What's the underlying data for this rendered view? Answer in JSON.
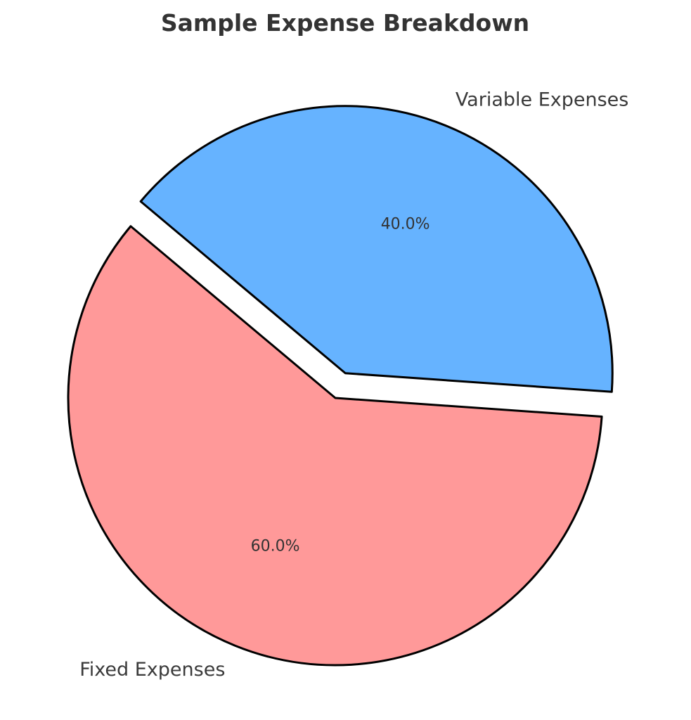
{
  "chart_data": {
    "type": "pie",
    "title": "Sample Expense Breakdown",
    "labels": [
      "Fixed Expenses",
      "Variable Expenses"
    ],
    "values": [
      60,
      40
    ],
    "percent_labels": [
      "60.0%",
      "40.0%"
    ],
    "colors": [
      "#ff9999",
      "#66b3ff"
    ],
    "explode": [
      0,
      0.1
    ],
    "start_angle_deg": 140,
    "edge_color": "#000000",
    "legend": "none"
  }
}
